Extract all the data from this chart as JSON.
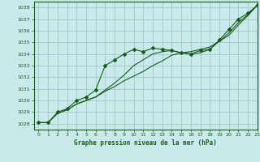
{
  "title": "Graphe pression niveau de la mer (hPa)",
  "background_color": "#c8eaea",
  "grid_color": "#9fc8c8",
  "line_color": "#1a5c1a",
  "xlim": [
    -0.5,
    23
  ],
  "ylim": [
    1027.5,
    1038.5
  ],
  "yticks": [
    1028,
    1029,
    1030,
    1031,
    1032,
    1033,
    1034,
    1035,
    1036,
    1037,
    1038
  ],
  "xticks": [
    0,
    1,
    2,
    3,
    4,
    5,
    6,
    7,
    8,
    9,
    10,
    11,
    12,
    13,
    14,
    15,
    16,
    17,
    18,
    19,
    20,
    21,
    22,
    23
  ],
  "series_marked_x": [
    0,
    1,
    2,
    3,
    4,
    5,
    6,
    7,
    8,
    9,
    10,
    11,
    12,
    13,
    14,
    15,
    16,
    17,
    18,
    19,
    20,
    21,
    22,
    23
  ],
  "series_marked_y": [
    1028.1,
    1028.1,
    1029.0,
    1029.3,
    1030.0,
    1030.3,
    1030.9,
    1033.0,
    1033.5,
    1034.0,
    1034.4,
    1034.2,
    1034.5,
    1034.4,
    1034.3,
    1034.1,
    1034.0,
    1034.3,
    1034.4,
    1035.2,
    1036.1,
    1037.0,
    1037.5,
    1038.2
  ],
  "series_line1_x": [
    0,
    1,
    2,
    3,
    4,
    5,
    6,
    7,
    8,
    9,
    10,
    11,
    12,
    13,
    14,
    15,
    16,
    17,
    18,
    19,
    20,
    21,
    22,
    23
  ],
  "series_line1_y": [
    1028.1,
    1028.1,
    1028.9,
    1029.2,
    1029.7,
    1030.0,
    1030.3,
    1030.8,
    1031.2,
    1031.7,
    1032.1,
    1032.5,
    1033.0,
    1033.4,
    1033.9,
    1034.1,
    1034.2,
    1034.4,
    1034.6,
    1035.1,
    1035.6,
    1036.5,
    1037.3,
    1038.2
  ],
  "series_line2_x": [
    0,
    1,
    2,
    3,
    4,
    5,
    6,
    7,
    8,
    9,
    10,
    11,
    12,
    13,
    14,
    15,
    16,
    17,
    18,
    19,
    20,
    21,
    22,
    23
  ],
  "series_line2_y": [
    1028.1,
    1028.1,
    1028.9,
    1029.2,
    1029.7,
    1030.0,
    1030.3,
    1030.9,
    1031.5,
    1032.2,
    1033.0,
    1033.5,
    1034.0,
    1034.2,
    1034.3,
    1034.1,
    1034.0,
    1034.1,
    1034.4,
    1035.1,
    1035.8,
    1036.7,
    1037.4,
    1038.2
  ]
}
